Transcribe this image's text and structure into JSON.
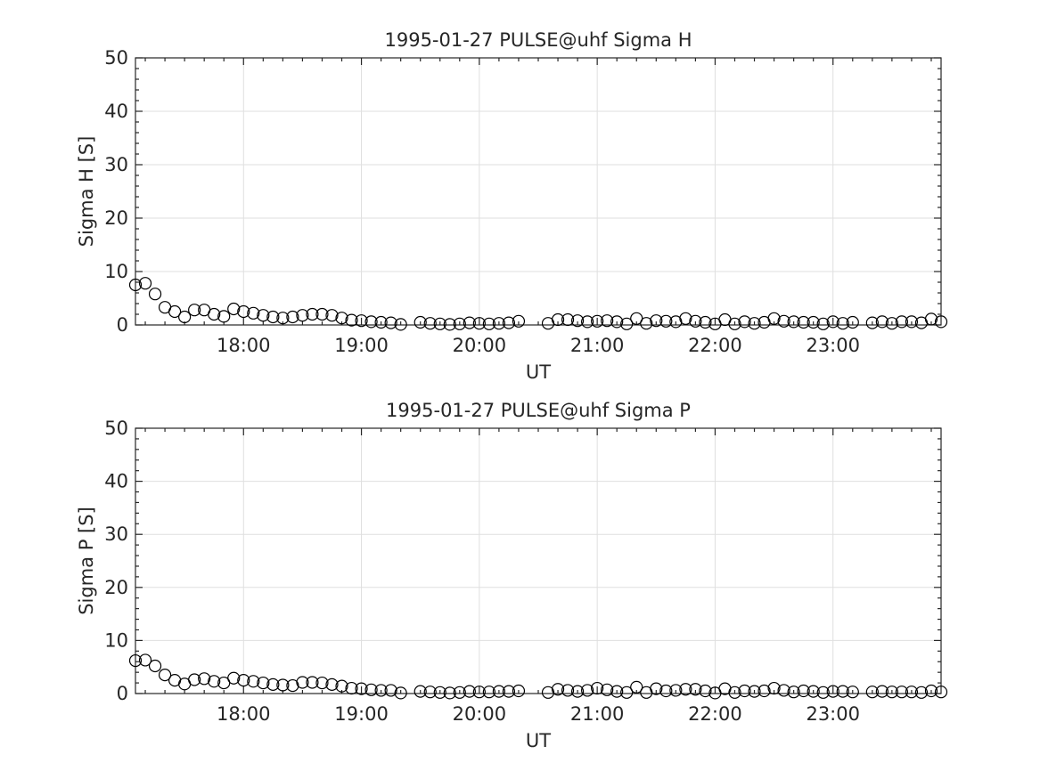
{
  "chart_data": [
    {
      "type": "scatter",
      "title": "1995-01-27  PULSE@uhf Sigma H",
      "xlabel": "UT",
      "ylabel": "Sigma H [S]",
      "xlim": [
        "17:05",
        "23:55"
      ],
      "ylim": [
        0,
        50
      ],
      "yticks": [
        0,
        10,
        20,
        30,
        40,
        50
      ],
      "xticks": [
        "18:00",
        "19:00",
        "20:00",
        "21:00",
        "22:00",
        "23:00"
      ],
      "grid": true,
      "marker": "open-circle",
      "color": "#000000",
      "x": [
        "17:05",
        "17:10",
        "17:15",
        "17:20",
        "17:25",
        "17:30",
        "17:35",
        "17:40",
        "17:45",
        "17:50",
        "17:55",
        "18:00",
        "18:05",
        "18:10",
        "18:15",
        "18:20",
        "18:25",
        "18:30",
        "18:35",
        "18:40",
        "18:45",
        "18:50",
        "18:55",
        "19:00",
        "19:05",
        "19:10",
        "19:15",
        "19:20",
        "19:30",
        "19:35",
        "19:40",
        "19:45",
        "19:50",
        "19:55",
        "20:00",
        "20:05",
        "20:10",
        "20:15",
        "20:20",
        "20:35",
        "20:40",
        "20:45",
        "20:50",
        "20:55",
        "21:00",
        "21:05",
        "21:10",
        "21:15",
        "21:20",
        "21:25",
        "21:30",
        "21:35",
        "21:40",
        "21:45",
        "21:50",
        "21:55",
        "22:00",
        "22:05",
        "22:10",
        "22:15",
        "22:20",
        "22:25",
        "22:30",
        "22:35",
        "22:40",
        "22:45",
        "22:50",
        "22:55",
        "23:00",
        "23:05",
        "23:10",
        "23:20",
        "23:25",
        "23:30",
        "23:35",
        "23:40",
        "23:45",
        "23:50",
        "23:55"
      ],
      "y": [
        7.5,
        7.8,
        5.8,
        3.3,
        2.5,
        1.5,
        2.8,
        2.8,
        2.0,
        1.6,
        3.0,
        2.5,
        2.2,
        1.8,
        1.5,
        1.3,
        1.5,
        1.8,
        2.0,
        2.0,
        1.8,
        1.3,
        0.9,
        0.8,
        0.6,
        0.5,
        0.4,
        0.1,
        0.5,
        0.3,
        0.2,
        0.1,
        0.2,
        0.4,
        0.3,
        0.2,
        0.3,
        0.4,
        0.7,
        0.3,
        1.0,
        1.0,
        0.8,
        0.6,
        0.7,
        0.8,
        0.6,
        0.2,
        1.2,
        0.3,
        0.8,
        0.7,
        0.6,
        1.2,
        0.7,
        0.5,
        0.2,
        1.0,
        0.2,
        0.6,
        0.3,
        0.5,
        1.2,
        0.7,
        0.6,
        0.5,
        0.5,
        0.2,
        0.6,
        0.3,
        0.5,
        0.4,
        0.6,
        0.3,
        0.6,
        0.6,
        0.4,
        1.1,
        0.6
      ]
    },
    {
      "type": "scatter",
      "title": "1995-01-27  PULSE@uhf Sigma P",
      "xlabel": "UT",
      "ylabel": "Sigma P [S]",
      "xlim": [
        "17:05",
        "23:55"
      ],
      "ylim": [
        0,
        50
      ],
      "yticks": [
        0,
        10,
        20,
        30,
        40,
        50
      ],
      "xticks": [
        "18:00",
        "19:00",
        "20:00",
        "21:00",
        "22:00",
        "23:00"
      ],
      "grid": true,
      "marker": "open-circle",
      "color": "#000000",
      "x": [
        "17:05",
        "17:10",
        "17:15",
        "17:20",
        "17:25",
        "17:30",
        "17:35",
        "17:40",
        "17:45",
        "17:50",
        "17:55",
        "18:00",
        "18:05",
        "18:10",
        "18:15",
        "18:20",
        "18:25",
        "18:30",
        "18:35",
        "18:40",
        "18:45",
        "18:50",
        "18:55",
        "19:00",
        "19:05",
        "19:10",
        "19:15",
        "19:20",
        "19:30",
        "19:35",
        "19:40",
        "19:45",
        "19:50",
        "19:55",
        "20:00",
        "20:05",
        "20:10",
        "20:15",
        "20:20",
        "20:35",
        "20:40",
        "20:45",
        "20:50",
        "20:55",
        "21:00",
        "21:05",
        "21:10",
        "21:15",
        "21:20",
        "21:25",
        "21:30",
        "21:35",
        "21:40",
        "21:45",
        "21:50",
        "21:55",
        "22:00",
        "22:05",
        "22:10",
        "22:15",
        "22:20",
        "22:25",
        "22:30",
        "22:35",
        "22:40",
        "22:45",
        "22:50",
        "22:55",
        "23:00",
        "23:05",
        "23:10",
        "23:20",
        "23:25",
        "23:30",
        "23:35",
        "23:40",
        "23:45",
        "23:50",
        "23:55"
      ],
      "y": [
        6.2,
        6.3,
        5.2,
        3.5,
        2.5,
        1.8,
        2.6,
        2.8,
        2.3,
        2.0,
        2.9,
        2.5,
        2.3,
        2.0,
        1.7,
        1.6,
        1.5,
        2.1,
        2.1,
        2.0,
        1.7,
        1.4,
        1.0,
        0.9,
        0.7,
        0.6,
        0.6,
        0.1,
        0.4,
        0.3,
        0.2,
        0.1,
        0.2,
        0.4,
        0.3,
        0.3,
        0.4,
        0.4,
        0.5,
        0.2,
        0.8,
        0.6,
        0.4,
        0.6,
        1.0,
        0.7,
        0.4,
        0.2,
        1.2,
        0.2,
        0.9,
        0.5,
        0.6,
        0.8,
        0.8,
        0.5,
        0.1,
        0.9,
        0.2,
        0.5,
        0.4,
        0.5,
        1.0,
        0.6,
        0.3,
        0.5,
        0.4,
        0.2,
        0.4,
        0.4,
        0.3,
        0.3,
        0.4,
        0.3,
        0.3,
        0.3,
        0.2,
        0.5,
        0.3
      ]
    }
  ]
}
